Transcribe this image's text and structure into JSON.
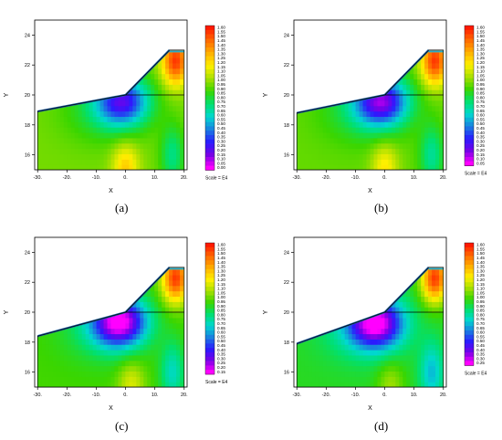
{
  "colors": {
    "background": "#ffffff",
    "outline": "#000000",
    "edge_band_dark": "#1a5fa0",
    "edge_band_mid": "#2aa9c9",
    "colormap": [
      "#ff00ff",
      "#7a00e6",
      "#2a1aff",
      "#1a7fe0",
      "#00d8d0",
      "#00e070",
      "#3ad600",
      "#a8e000",
      "#fff000",
      "#ffb000",
      "#ff6a00",
      "#ff1a00"
    ]
  },
  "panels": [
    {
      "caption": "(a)",
      "scale_label": "Scale = E4",
      "x_label": "X",
      "y_label": "Y",
      "x_ticks": [
        "-30.",
        "-20.",
        "-10.",
        "0.",
        "10.",
        "20."
      ],
      "y_ticks": [
        "16",
        "18",
        "20",
        "22",
        "24"
      ],
      "legend_labels": [
        "1.60",
        "1.55",
        "1.50",
        "1.45",
        "1.40",
        "1.35",
        "1.30",
        "1.25",
        "1.20",
        "1.15",
        "1.10",
        "1.05",
        "1.00",
        "0.95",
        "0.90",
        "0.85",
        "0.80",
        "0.75",
        "0.70",
        "0.65",
        "0.60",
        "0.55",
        "0.50",
        "0.45",
        "0.40",
        "0.35",
        "0.30",
        "0.25",
        "0.20",
        "0.15",
        "0.10",
        "0.05",
        "0.00"
      ]
    },
    {
      "caption": "(b)",
      "scale_label": "Scale = E4",
      "x_label": "X",
      "y_label": "Y",
      "x_ticks": [
        "-30.",
        "-20.",
        "-10.",
        "0.",
        "10.",
        "20."
      ],
      "y_ticks": [
        "16",
        "18",
        "20",
        "22",
        "24"
      ],
      "legend_labels": [
        "1.60",
        "1.55",
        "1.50",
        "1.45",
        "1.40",
        "1.35",
        "1.30",
        "1.25",
        "1.20",
        "1.15",
        "1.10",
        "1.05",
        "1.00",
        "0.95",
        "0.90",
        "0.85",
        "0.80",
        "0.75",
        "0.70",
        "0.65",
        "0.60",
        "0.55",
        "0.50",
        "0.45",
        "0.40",
        "0.35",
        "0.30",
        "0.25",
        "0.20",
        "0.15",
        "0.10",
        "0.05"
      ]
    },
    {
      "caption": "(c)",
      "scale_label": "Scale = E4",
      "x_label": "X",
      "y_label": "Y",
      "x_ticks": [
        "-30.",
        "-20.",
        "-10.",
        "0.",
        "10.",
        "20."
      ],
      "y_ticks": [
        "16",
        "18",
        "20",
        "22",
        "24"
      ],
      "legend_labels": [
        "1.60",
        "1.55",
        "1.50",
        "1.45",
        "1.40",
        "1.35",
        "1.30",
        "1.25",
        "1.20",
        "1.15",
        "1.10",
        "1.05",
        "1.00",
        "0.95",
        "0.90",
        "0.85",
        "0.80",
        "0.75",
        "0.70",
        "0.65",
        "0.60",
        "0.55",
        "0.50",
        "0.45",
        "0.40",
        "0.35",
        "0.30",
        "0.25",
        "0.20",
        "0.15"
      ]
    },
    {
      "caption": "(d)",
      "scale_label": "Scale = E4",
      "x_label": "X",
      "y_label": "Y",
      "x_ticks": [
        "-30.",
        "-20.",
        "-10.",
        "0.",
        "10.",
        "20."
      ],
      "y_ticks": [
        "16",
        "18",
        "20",
        "22",
        "24"
      ],
      "legend_labels": [
        "1.60",
        "1.55",
        "1.50",
        "1.45",
        "1.40",
        "1.35",
        "1.30",
        "1.25",
        "1.20",
        "1.15",
        "1.10",
        "1.05",
        "1.00",
        "0.95",
        "0.90",
        "0.85",
        "0.80",
        "0.75",
        "0.70",
        "0.65",
        "0.60",
        "0.55",
        "0.50",
        "0.45",
        "0.40",
        "0.35",
        "0.30",
        "0.25"
      ]
    }
  ],
  "chart_data": [
    {
      "type": "heatmap",
      "title": "",
      "xlabel": "X",
      "ylabel": "Y",
      "xlim": [
        -31,
        21
      ],
      "ylim": [
        15,
        25
      ],
      "x_ticks": [
        -30,
        -20,
        -10,
        0,
        10,
        20
      ],
      "y_ticks": [
        16,
        18,
        20,
        22,
        24
      ],
      "colorbar": {
        "min": 0.0,
        "max": 1.6,
        "step": 0.05,
        "scale": "E4"
      },
      "domain_outline": [
        [
          -30,
          15
        ],
        [
          20,
          15
        ],
        [
          20,
          23
        ],
        [
          15,
          23
        ],
        [
          0,
          20
        ],
        [
          -30,
          18.9
        ]
      ],
      "low_zone": {
        "x": -1,
        "y": 19.6,
        "value": 0.3
      },
      "high_zones": [
        {
          "x": 17,
          "y": 22.3,
          "value": 1.55
        },
        {
          "x": 0,
          "y": 15.2,
          "value": 1.25
        }
      ]
    },
    {
      "type": "heatmap",
      "title": "",
      "xlabel": "X",
      "ylabel": "Y",
      "xlim": [
        -31,
        21
      ],
      "ylim": [
        15,
        25
      ],
      "x_ticks": [
        -30,
        -20,
        -10,
        0,
        10,
        20
      ],
      "y_ticks": [
        16,
        18,
        20,
        22,
        24
      ],
      "colorbar": {
        "min": 0.05,
        "max": 1.6,
        "step": 0.05,
        "scale": "E4"
      },
      "domain_outline": [
        [
          -30,
          15
        ],
        [
          20,
          15
        ],
        [
          20,
          23
        ],
        [
          15,
          23
        ],
        [
          0,
          20
        ],
        [
          -30,
          18.8
        ]
      ],
      "low_zone": {
        "x": -1,
        "y": 19.6,
        "value": 0.25
      },
      "high_zones": [
        {
          "x": 17,
          "y": 22.3,
          "value": 1.55
        },
        {
          "x": 0,
          "y": 15.2,
          "value": 1.2
        }
      ]
    },
    {
      "type": "heatmap",
      "title": "",
      "xlabel": "X",
      "ylabel": "Y",
      "xlim": [
        -31,
        21
      ],
      "ylim": [
        15,
        25
      ],
      "x_ticks": [
        -30,
        -20,
        -10,
        0,
        10,
        20
      ],
      "y_ticks": [
        16,
        18,
        20,
        22,
        24
      ],
      "colorbar": {
        "min": 0.15,
        "max": 1.6,
        "step": 0.05,
        "scale": "E4"
      },
      "domain_outline": [
        [
          -30,
          15
        ],
        [
          20,
          15
        ],
        [
          20,
          23
        ],
        [
          15,
          23
        ],
        [
          0,
          20
        ],
        [
          -30,
          18.4
        ]
      ],
      "low_zone": {
        "x": -2,
        "y": 19.4,
        "value": 0.2
      },
      "high_zones": [
        {
          "x": 17,
          "y": 22.3,
          "value": 1.55
        },
        {
          "x": 2,
          "y": 15.2,
          "value": 1.15
        }
      ]
    },
    {
      "type": "heatmap",
      "title": "",
      "xlabel": "X",
      "ylabel": "Y",
      "xlim": [
        -31,
        21
      ],
      "ylim": [
        15,
        25
      ],
      "x_ticks": [
        -30,
        -20,
        -10,
        0,
        10,
        20
      ],
      "y_ticks": [
        16,
        18,
        20,
        22,
        24
      ],
      "colorbar": {
        "min": 0.25,
        "max": 1.6,
        "step": 0.05,
        "scale": "E4"
      },
      "domain_outline": [
        [
          -30,
          15
        ],
        [
          20,
          15
        ],
        [
          20,
          23
        ],
        [
          15,
          23
        ],
        [
          0,
          20
        ],
        [
          -30,
          17.9
        ]
      ],
      "low_zone": {
        "x": -3,
        "y": 19.3,
        "value": 0.3
      },
      "high_zones": [
        {
          "x": 17,
          "y": 22.3,
          "value": 1.55
        },
        {
          "x": 2,
          "y": 15.2,
          "value": 1.1
        }
      ]
    }
  ]
}
